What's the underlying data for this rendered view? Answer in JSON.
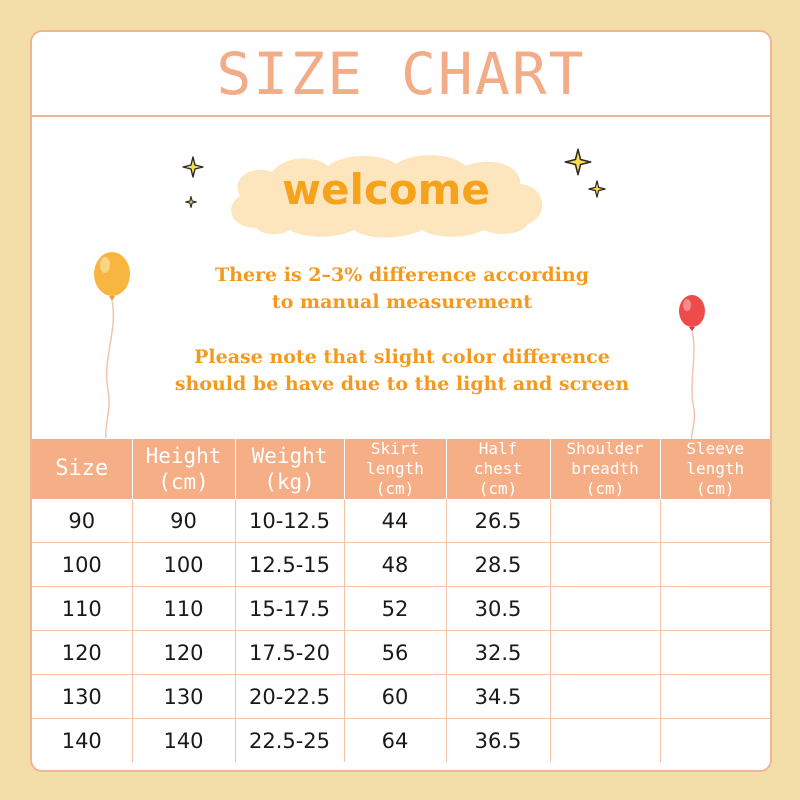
{
  "title": "SIZE CHART",
  "welcome": "welcome",
  "notes": [
    "There is 2-3% difference according to manual measurement",
    "Please note that slight color difference should be have due to the light and screen"
  ],
  "notes_lines": [
    [
      "There is 2–3% difference according",
      "to manual measurement"
    ],
    [
      "Please note that slight color difference",
      "should be have due to the light and screen"
    ]
  ],
  "colors": {
    "background": "#f3deaa",
    "accent": "#f5ae86",
    "title": "#f2ad88",
    "welcome": "#f5a31c",
    "note": "#f39a1e"
  },
  "icons": [
    "sparkle-icon",
    "yellow-balloon-icon",
    "red-balloon-icon"
  ],
  "table": {
    "headers": [
      [
        "Size"
      ],
      [
        "Height",
        "(cm)"
      ],
      [
        "Weight",
        "(kg)"
      ],
      [
        "Skirt",
        "length",
        "(cm)"
      ],
      [
        "Half",
        "chest",
        "(cm)"
      ],
      [
        "Shoulder",
        "breadth",
        "(cm)"
      ],
      [
        "Sleeve",
        "length",
        "(cm)"
      ]
    ],
    "rows": [
      [
        "90",
        "90",
        "10-12.5",
        "44",
        "26.5",
        "",
        ""
      ],
      [
        "100",
        "100",
        "12.5-15",
        "48",
        "28.5",
        "",
        ""
      ],
      [
        "110",
        "110",
        "15-17.5",
        "52",
        "30.5",
        "",
        ""
      ],
      [
        "120",
        "120",
        "17.5-20",
        "56",
        "32.5",
        "",
        ""
      ],
      [
        "130",
        "130",
        "20-22.5",
        "60",
        "34.5",
        "",
        ""
      ],
      [
        "140",
        "140",
        "22.5-25",
        "64",
        "36.5",
        "",
        ""
      ]
    ]
  }
}
